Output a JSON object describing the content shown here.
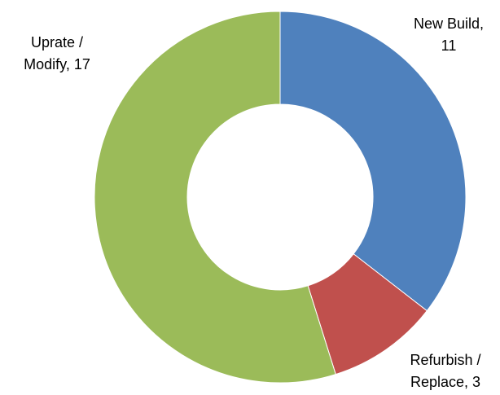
{
  "chart_data": {
    "type": "donut",
    "values": [
      11,
      3,
      17
    ],
    "value_labels": [
      "New Build, 11",
      "Refurbish / Replace, 3",
      "Uprate / Modify, 17"
    ],
    "colors": [
      "#4f81bd",
      "#c0504d",
      "#9bbb59"
    ]
  }
}
